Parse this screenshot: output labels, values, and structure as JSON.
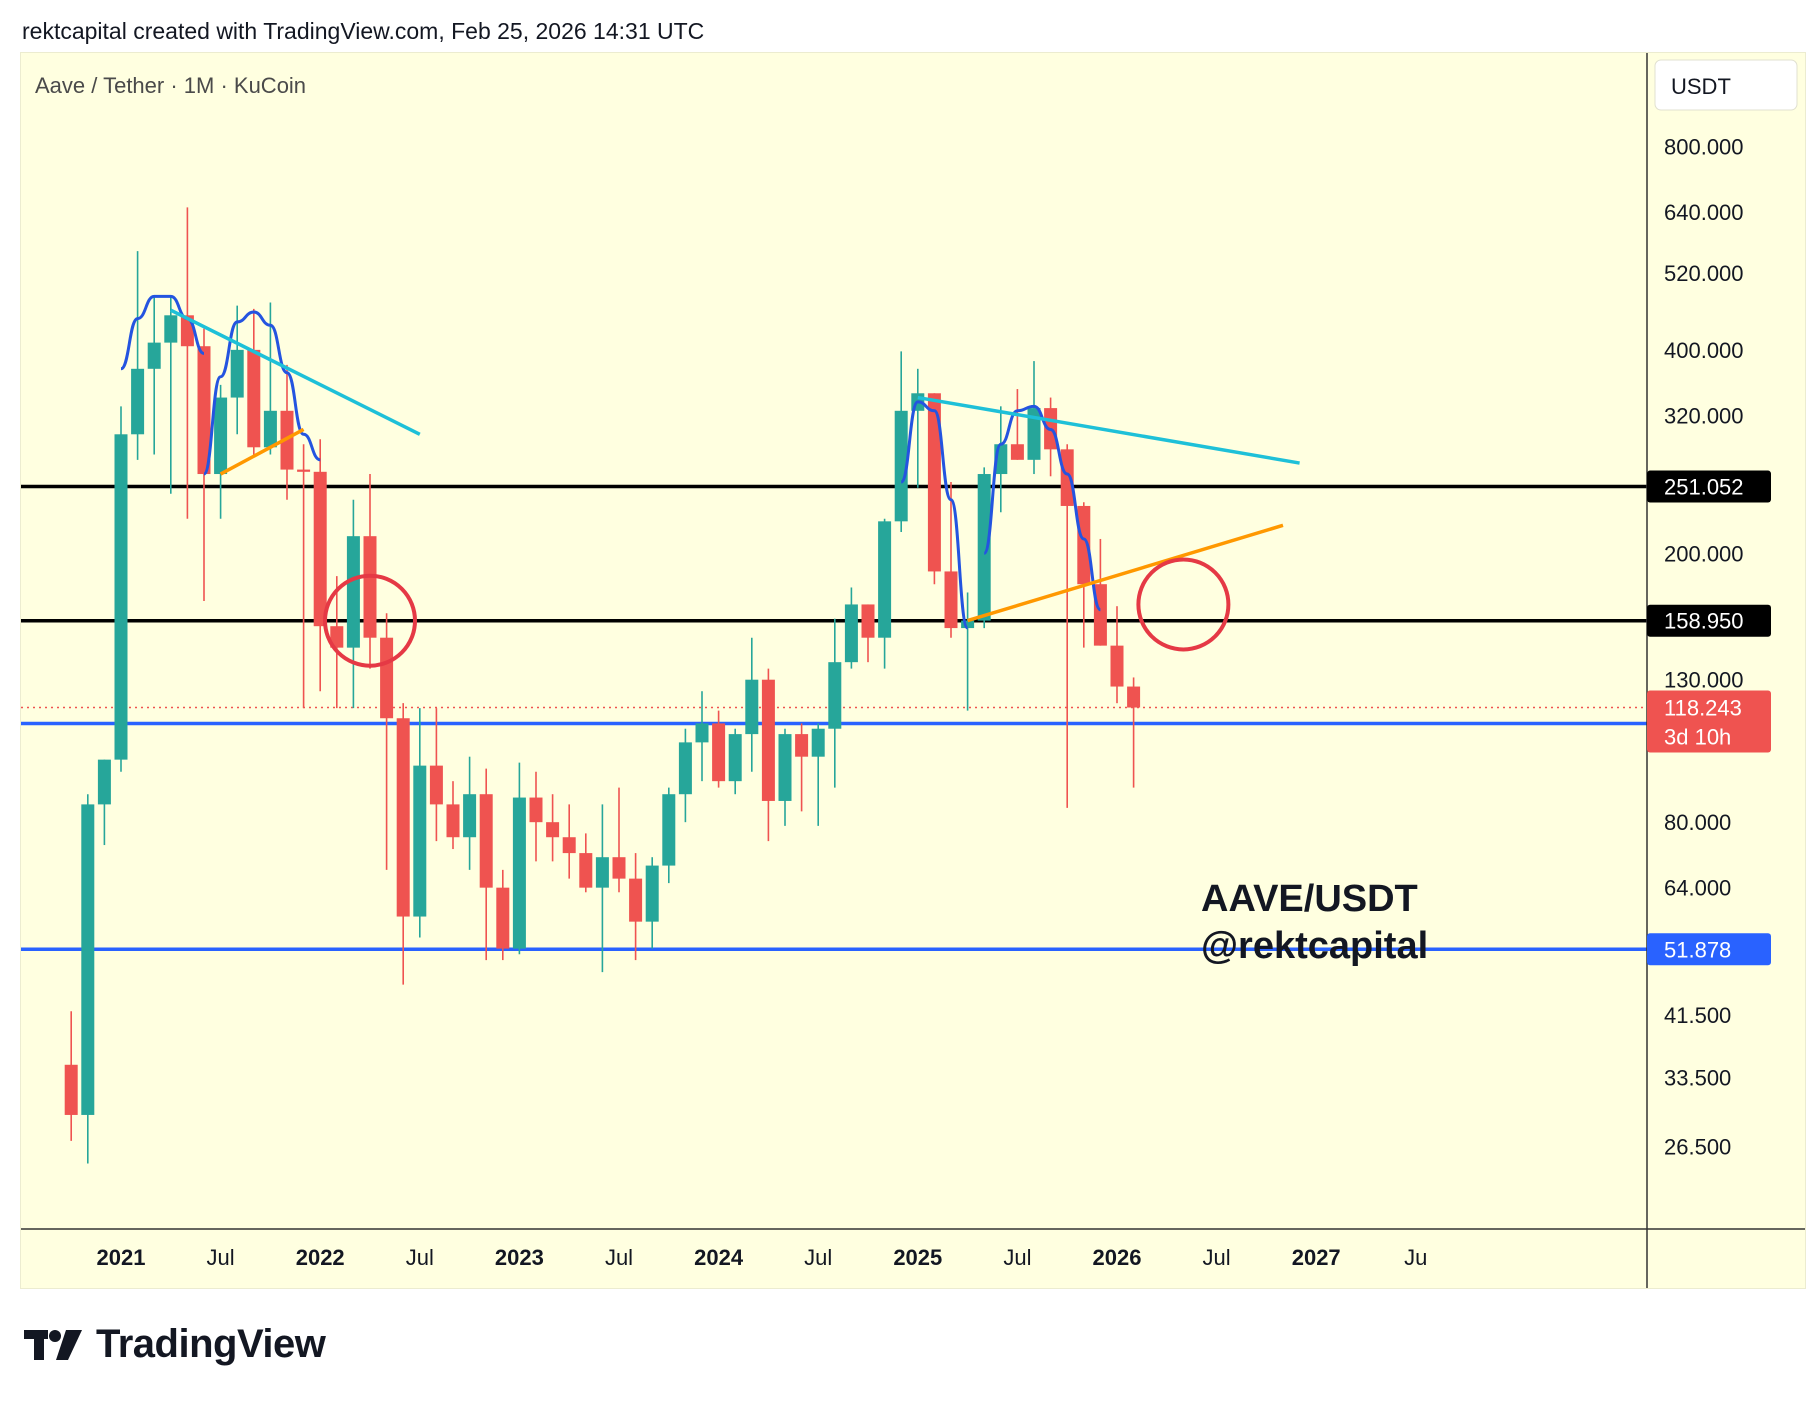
{
  "header": {
    "text": "rektcapital created with TradingView.com, Feb 25, 2026 14:31 UTC"
  },
  "chart": {
    "symbol_line": "Aave / Tether · 1M · KuCoin",
    "currency_button": "USDT"
  },
  "watermark": {
    "line1": "AAVE/USDT",
    "line2": "@rektcapital"
  },
  "footer": {
    "brand": "TradingView"
  },
  "colors": {
    "background": "#ffffe0",
    "up": "#26a69a",
    "down": "#ef5350",
    "support": "#2962ff",
    "resistance": "#000000",
    "trendline_cyan": "#1ec0d8",
    "trendline_orange": "#ff9800",
    "curve": "#2454e0",
    "circle": "#e53945"
  },
  "chart_data": {
    "type": "candlestick",
    "title": "Aave / Tether · 1M · KuCoin",
    "y_scale": "log",
    "ylim": [
      20,
      1100
    ],
    "y_ticks": [
      {
        "label": "800.000",
        "value": 800
      },
      {
        "label": "640.000",
        "value": 640
      },
      {
        "label": "520.000",
        "value": 520
      },
      {
        "label": "400.000",
        "value": 400
      },
      {
        "label": "320.000",
        "value": 320
      },
      {
        "label": "200.000",
        "value": 200
      },
      {
        "label": "130.000",
        "value": 130
      },
      {
        "label": "80.000",
        "value": 80
      },
      {
        "label": "64.000",
        "value": 64
      },
      {
        "label": "41.500",
        "value": 41.5
      },
      {
        "label": "33.500",
        "value": 33.5
      },
      {
        "label": "26.500",
        "value": 26.5
      }
    ],
    "x_ticks": [
      {
        "label": "2021",
        "date": "2021-01",
        "bold": true
      },
      {
        "label": "Jul",
        "date": "2021-07",
        "bold": false
      },
      {
        "label": "2022",
        "date": "2022-01",
        "bold": true
      },
      {
        "label": "Jul",
        "date": "2022-07",
        "bold": false
      },
      {
        "label": "2023",
        "date": "2023-01",
        "bold": true
      },
      {
        "label": "Jul",
        "date": "2023-07",
        "bold": false
      },
      {
        "label": "2024",
        "date": "2024-01",
        "bold": true
      },
      {
        "label": "Jul",
        "date": "2024-07",
        "bold": false
      },
      {
        "label": "2025",
        "date": "2025-01",
        "bold": true
      },
      {
        "label": "Jul",
        "date": "2025-07",
        "bold": false
      },
      {
        "label": "2026",
        "date": "2026-01",
        "bold": true
      },
      {
        "label": "Jul",
        "date": "2026-07",
        "bold": false
      },
      {
        "label": "2027",
        "date": "2027-01",
        "bold": true
      },
      {
        "label": "Ju",
        "date": "2027-07",
        "bold": false
      }
    ],
    "candles": [
      {
        "date": "2020-10",
        "o": 35,
        "h": 42,
        "l": 27,
        "c": 29.5
      },
      {
        "date": "2020-11",
        "o": 29.5,
        "h": 88,
        "l": 25,
        "c": 85
      },
      {
        "date": "2020-12",
        "o": 85,
        "h": 95,
        "l": 74,
        "c": 99
      },
      {
        "date": "2021-01",
        "o": 99,
        "h": 330,
        "l": 95,
        "c": 300
      },
      {
        "date": "2021-02",
        "o": 300,
        "h": 560,
        "l": 275,
        "c": 375
      },
      {
        "date": "2021-03",
        "o": 375,
        "h": 480,
        "l": 280,
        "c": 410
      },
      {
        "date": "2021-04",
        "o": 410,
        "h": 480,
        "l": 245,
        "c": 450
      },
      {
        "date": "2021-05",
        "o": 450,
        "h": 650,
        "l": 225,
        "c": 405
      },
      {
        "date": "2021-06",
        "o": 405,
        "h": 430,
        "l": 170,
        "c": 262
      },
      {
        "date": "2021-07",
        "o": 262,
        "h": 355,
        "l": 225,
        "c": 340
      },
      {
        "date": "2021-08",
        "o": 340,
        "h": 465,
        "l": 300,
        "c": 400
      },
      {
        "date": "2021-09",
        "o": 400,
        "h": 460,
        "l": 280,
        "c": 287
      },
      {
        "date": "2021-10",
        "o": 287,
        "h": 470,
        "l": 280,
        "c": 325
      },
      {
        "date": "2021-11",
        "o": 325,
        "h": 380,
        "l": 240,
        "c": 266
      },
      {
        "date": "2021-12",
        "o": 266,
        "h": 290,
        "l": 118,
        "c": 264
      },
      {
        "date": "2022-01",
        "o": 264,
        "h": 295,
        "l": 125,
        "c": 156
      },
      {
        "date": "2022-02",
        "o": 156,
        "h": 185,
        "l": 118,
        "c": 145
      },
      {
        "date": "2022-03",
        "o": 145,
        "h": 240,
        "l": 118,
        "c": 212
      },
      {
        "date": "2022-04",
        "o": 212,
        "h": 262,
        "l": 135,
        "c": 150
      },
      {
        "date": "2022-05",
        "o": 150,
        "h": 163,
        "l": 68,
        "c": 114
      },
      {
        "date": "2022-06",
        "o": 114,
        "h": 120,
        "l": 46,
        "c": 58
      },
      {
        "date": "2022-07",
        "o": 58,
        "h": 118,
        "l": 54,
        "c": 97
      },
      {
        "date": "2022-08",
        "o": 97,
        "h": 118,
        "l": 75,
        "c": 85
      },
      {
        "date": "2022-09",
        "o": 85,
        "h": 92,
        "l": 73,
        "c": 76
      },
      {
        "date": "2022-10",
        "o": 76,
        "h": 100,
        "l": 68,
        "c": 88
      },
      {
        "date": "2022-11",
        "o": 88,
        "h": 96,
        "l": 50,
        "c": 64
      },
      {
        "date": "2022-12",
        "o": 64,
        "h": 68,
        "l": 50,
        "c": 52
      },
      {
        "date": "2023-01",
        "o": 52,
        "h": 98,
        "l": 51,
        "c": 87
      },
      {
        "date": "2023-02",
        "o": 87,
        "h": 95,
        "l": 70,
        "c": 80
      },
      {
        "date": "2023-03",
        "o": 80,
        "h": 88,
        "l": 70,
        "c": 76
      },
      {
        "date": "2023-04",
        "o": 76,
        "h": 85,
        "l": 66,
        "c": 72
      },
      {
        "date": "2023-05",
        "o": 72,
        "h": 77,
        "l": 63,
        "c": 64
      },
      {
        "date": "2023-06",
        "o": 64,
        "h": 85,
        "l": 48,
        "c": 71
      },
      {
        "date": "2023-07",
        "o": 71,
        "h": 90,
        "l": 63,
        "c": 66
      },
      {
        "date": "2023-08",
        "o": 66,
        "h": 72,
        "l": 50,
        "c": 57
      },
      {
        "date": "2023-09",
        "o": 57,
        "h": 71,
        "l": 52,
        "c": 69
      },
      {
        "date": "2023-10",
        "o": 69,
        "h": 90,
        "l": 65,
        "c": 88
      },
      {
        "date": "2023-11",
        "o": 88,
        "h": 110,
        "l": 80,
        "c": 105
      },
      {
        "date": "2023-12",
        "o": 105,
        "h": 125,
        "l": 92,
        "c": 112
      },
      {
        "date": "2024-01",
        "o": 112,
        "h": 117,
        "l": 90,
        "c": 92
      },
      {
        "date": "2024-02",
        "o": 92,
        "h": 110,
        "l": 88,
        "c": 108
      },
      {
        "date": "2024-03",
        "o": 108,
        "h": 150,
        "l": 95,
        "c": 130
      },
      {
        "date": "2024-04",
        "o": 130,
        "h": 135,
        "l": 75,
        "c": 86
      },
      {
        "date": "2024-05",
        "o": 86,
        "h": 110,
        "l": 79,
        "c": 108
      },
      {
        "date": "2024-06",
        "o": 108,
        "h": 112,
        "l": 83,
        "c": 100
      },
      {
        "date": "2024-07",
        "o": 100,
        "h": 112,
        "l": 79,
        "c": 110
      },
      {
        "date": "2024-08",
        "o": 110,
        "h": 160,
        "l": 90,
        "c": 138
      },
      {
        "date": "2024-09",
        "o": 138,
        "h": 178,
        "l": 135,
        "c": 168
      },
      {
        "date": "2024-10",
        "o": 168,
        "h": 162,
        "l": 138,
        "c": 150
      },
      {
        "date": "2024-11",
        "o": 150,
        "h": 225,
        "l": 135,
        "c": 223
      },
      {
        "date": "2024-12",
        "o": 223,
        "h": 398,
        "l": 215,
        "c": 325
      },
      {
        "date": "2025-01",
        "o": 325,
        "h": 375,
        "l": 250,
        "c": 345
      },
      {
        "date": "2025-02",
        "o": 345,
        "h": 345,
        "l": 180,
        "c": 188
      },
      {
        "date": "2025-03",
        "o": 188,
        "h": 255,
        "l": 150,
        "c": 155
      },
      {
        "date": "2025-04",
        "o": 155,
        "h": 175,
        "l": 117,
        "c": 159
      },
      {
        "date": "2025-05",
        "o": 159,
        "h": 268,
        "l": 155,
        "c": 262
      },
      {
        "date": "2025-06",
        "o": 262,
        "h": 330,
        "l": 230,
        "c": 290
      },
      {
        "date": "2025-07",
        "o": 290,
        "h": 350,
        "l": 275,
        "c": 275
      },
      {
        "date": "2025-08",
        "o": 275,
        "h": 385,
        "l": 262,
        "c": 328
      },
      {
        "date": "2025-09",
        "o": 328,
        "h": 340,
        "l": 260,
        "c": 285
      },
      {
        "date": "2025-10",
        "o": 285,
        "h": 290,
        "l": 84,
        "c": 235
      },
      {
        "date": "2025-11",
        "o": 235,
        "h": 238,
        "l": 145,
        "c": 180
      },
      {
        "date": "2025-12",
        "o": 180,
        "h": 210,
        "l": 150,
        "c": 146
      },
      {
        "date": "2026-01",
        "o": 146,
        "h": 167,
        "l": 120,
        "c": 127
      },
      {
        "date": "2026-02",
        "o": 127,
        "h": 131,
        "l": 90,
        "c": 118.243
      }
    ],
    "horizontal_levels": [
      {
        "value": 251.052,
        "label": "251.052",
        "kind": "resistance"
      },
      {
        "value": 158.95,
        "label": "158.950",
        "kind": "resistance"
      },
      {
        "value": 111.971,
        "label": "111.971",
        "kind": "support"
      },
      {
        "value": 51.878,
        "label": "51.878",
        "kind": "support"
      }
    ],
    "last_price": {
      "value": 118.243,
      "label": "118.243",
      "countdown": "3d 10h"
    },
    "trendlines": [
      {
        "color": "cyan",
        "from": {
          "date": "2021-04",
          "value": 458
        },
        "to": {
          "date": "2022-07",
          "value": 300
        }
      },
      {
        "color": "orange",
        "from": {
          "date": "2021-07",
          "value": 262
        },
        "to": {
          "date": "2021-12",
          "value": 305
        }
      },
      {
        "color": "cyan",
        "from": {
          "date": "2025-01",
          "value": 340
        },
        "to": {
          "date": "2026-12",
          "value": 272
        }
      },
      {
        "color": "orange",
        "from": {
          "date": "2025-04",
          "value": 159
        },
        "to": {
          "date": "2026-11",
          "value": 220
        }
      }
    ],
    "circles": [
      {
        "date": "2022-04",
        "value": 158.95
      },
      {
        "date": "2026-05",
        "value": 168
      }
    ],
    "curves": [
      {
        "points": [
          [
            "2021-01",
            375
          ],
          [
            "2021-02",
            445
          ],
          [
            "2021-03",
            480
          ],
          [
            "2021-04",
            480
          ],
          [
            "2021-05",
            445
          ],
          [
            "2021-06",
            395
          ]
        ]
      },
      {
        "points": [
          [
            "2021-06",
            262
          ],
          [
            "2021-07",
            365
          ],
          [
            "2021-08",
            440
          ],
          [
            "2021-09",
            455
          ],
          [
            "2021-10",
            435
          ],
          [
            "2021-11",
            370
          ],
          [
            "2021-12",
            300
          ],
          [
            "2022-01",
            275
          ]
        ]
      },
      {
        "points": [
          [
            "2024-12",
            255
          ],
          [
            "2025-01",
            335
          ],
          [
            "2025-02",
            325
          ],
          [
            "2025-03",
            240
          ],
          [
            "2025-04",
            155
          ]
        ]
      },
      {
        "points": [
          [
            "2025-05",
            200
          ],
          [
            "2025-06",
            290
          ],
          [
            "2025-07",
            325
          ],
          [
            "2025-08",
            330
          ],
          [
            "2025-09",
            305
          ],
          [
            "2025-10",
            262
          ],
          [
            "2025-11",
            210
          ],
          [
            "2025-12",
            165
          ]
        ]
      }
    ]
  }
}
